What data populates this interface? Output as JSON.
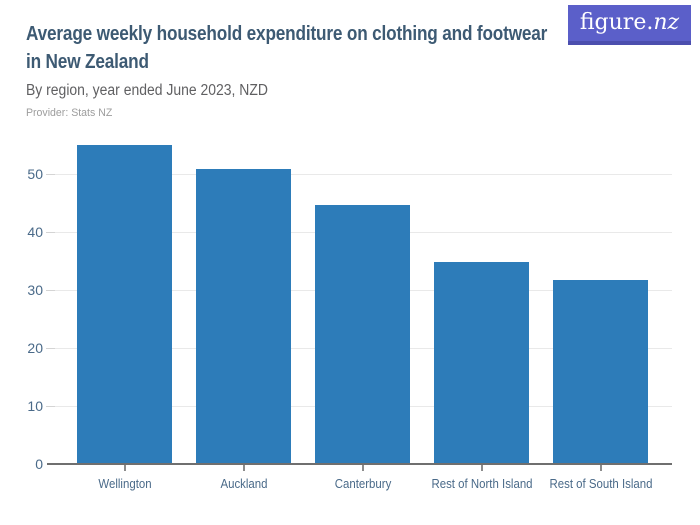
{
  "header": {
    "title_lines": [
      "Average weekly household expenditure on clothing and footwear",
      "in New Zealand"
    ],
    "subtitle": "By region, year ended June 2023, NZD",
    "provider": "Provider: Stats NZ",
    "logo": {
      "text_main": "figure.",
      "text_suffix": "nz"
    }
  },
  "colors": {
    "bar": "#2d7cb9",
    "title_text": "#3d5a73",
    "subtitle_text": "#606062",
    "provider_text": "#9d9d9d",
    "axis_text": "#4a6a89",
    "gridline": "#e9e9e9",
    "axis_line": "#6f6f6f",
    "tick": "#8c8c8c",
    "logo_bg": "#5b5fc9",
    "logo_bg_bottom": "#4b4eae",
    "logo_text": "#ffffff",
    "background": "#ffffff"
  },
  "chart_data": {
    "type": "bar",
    "title": "Average weekly household expenditure on clothing and footwear in New Zealand",
    "subtitle": "By region, year ended June 2023, NZD",
    "provider": "Stats NZ",
    "categories": [
      "Wellington",
      "Auckland",
      "Canterbury",
      "Rest of North Island",
      "Rest of South Island"
    ],
    "values": [
      55.0,
      50.8,
      44.7,
      34.8,
      31.8
    ],
    "xlabel": "",
    "ylabel": "",
    "ylim": [
      0,
      57
    ],
    "yticks": [
      0,
      10,
      20,
      30,
      40,
      50
    ],
    "grid": true,
    "legend_position": "none"
  }
}
